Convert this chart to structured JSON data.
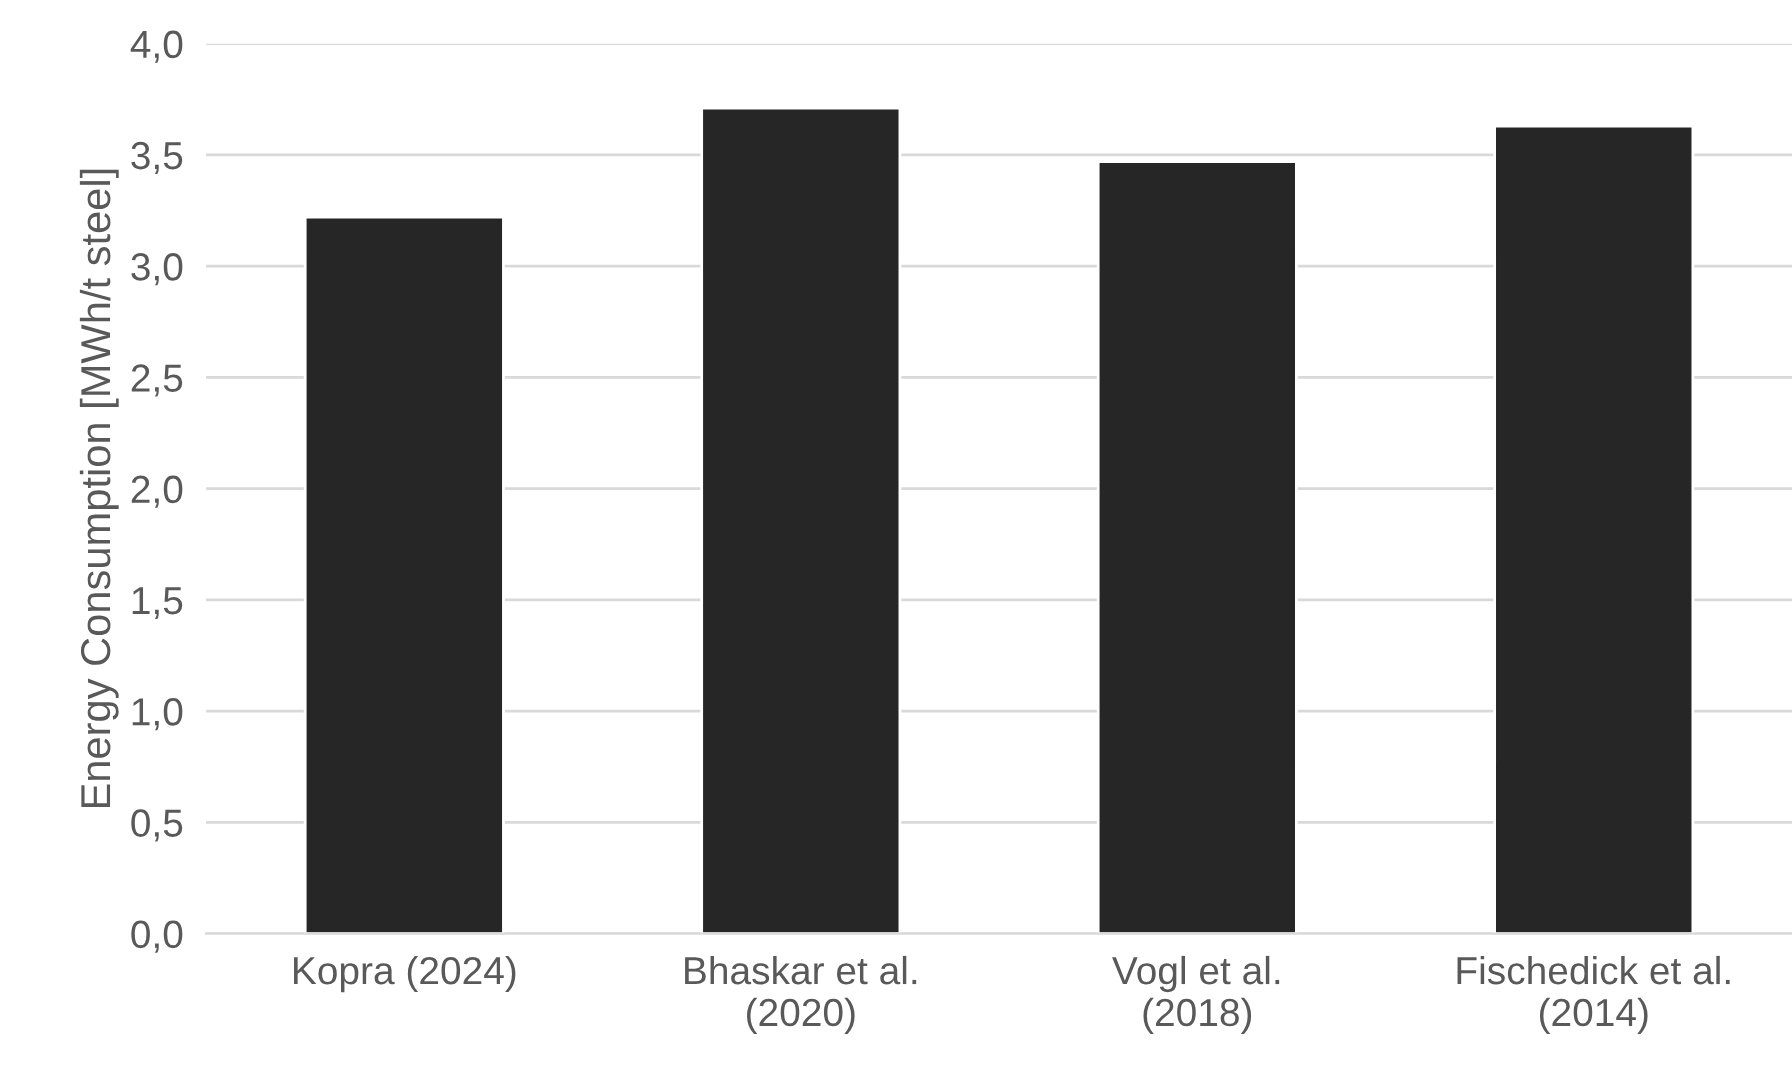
{
  "chart_data": {
    "type": "bar",
    "ylabel": "Energy Consumption [MWh/t steel]",
    "categories": [
      "Kopra (2024)",
      "Bhaskar et al.\n(2020)",
      "Vogl et al.\n(2018)",
      "Fischedick et al.\n(2014)"
    ],
    "values": [
      3.22,
      3.71,
      3.47,
      3.63
    ],
    "color": "#262626",
    "ylim": [
      0,
      4
    ],
    "yticks": [
      {
        "value": 0,
        "label": "0,0"
      },
      {
        "value": 0.5,
        "label": "0,5"
      },
      {
        "value": 1,
        "label": "1,0"
      },
      {
        "value": 1.5,
        "label": "1,5"
      },
      {
        "value": 2,
        "label": "2,0"
      },
      {
        "value": 2.5,
        "label": "2,5"
      },
      {
        "value": 3,
        "label": "3,0"
      },
      {
        "value": 3.5,
        "label": "3,5"
      },
      {
        "value": 4,
        "label": "4,0"
      }
    ],
    "grid": "y"
  }
}
